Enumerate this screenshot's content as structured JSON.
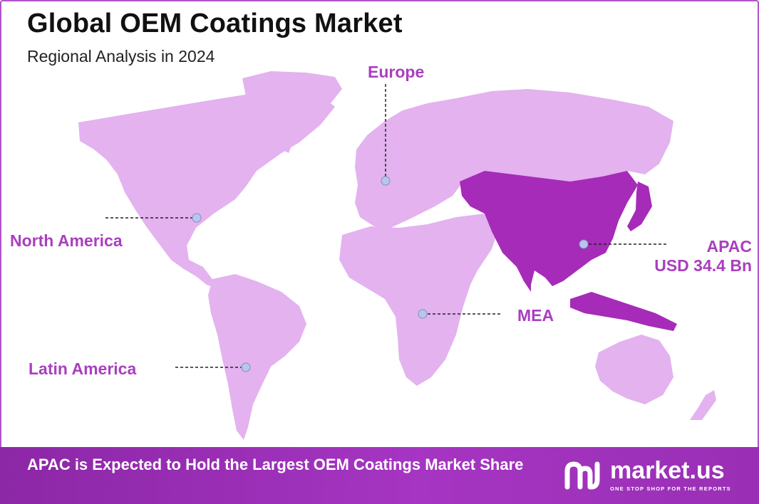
{
  "header": {
    "title": "Global OEM Coatings Market",
    "subtitle": "Regional Analysis in 2024"
  },
  "map": {
    "highlight_color": "#a62bb8",
    "region_color": "#e3b2ef",
    "regions": [
      {
        "id": "north-america",
        "label": "North America",
        "highlighted": false
      },
      {
        "id": "europe",
        "label": "Europe",
        "highlighted": false
      },
      {
        "id": "apac",
        "label": "APAC",
        "value": "USD 34.4 Bn",
        "highlighted": true
      },
      {
        "id": "mea",
        "label": "MEA",
        "highlighted": false
      },
      {
        "id": "latin-america",
        "label": "Latin America",
        "highlighted": false
      }
    ]
  },
  "footer": {
    "text": "APAC is Expected to Hold the Largest OEM Coatings Market Share",
    "brand_name": "market.us",
    "brand_tagline": "ONE STOP SHOP FOR THE REPORTS",
    "brand_icon": "market-us-logo-icon"
  }
}
